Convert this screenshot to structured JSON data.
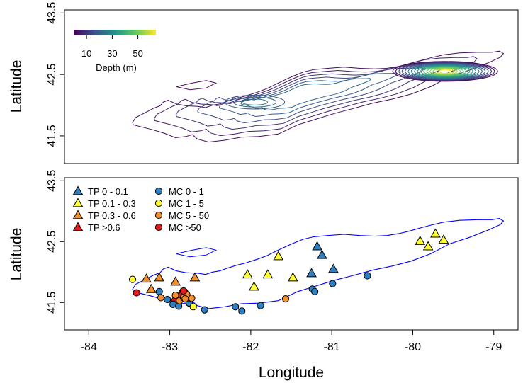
{
  "chart_data": [
    {
      "type": "contour",
      "panel": "top",
      "ylabel": "Latitude",
      "xlim": [
        -84.3,
        -78.7
      ],
      "ylim": [
        41.05,
        43.55
      ],
      "yticks": [
        "41.5",
        "42.5",
        "43.5"
      ],
      "colorbar": {
        "label": "Depth (m)",
        "ticks": [
          "10",
          "30",
          "50"
        ],
        "range": [
          0,
          64
        ],
        "palette": "viridis",
        "colors": [
          "#440154",
          "#3b528b",
          "#21918c",
          "#5ec962",
          "#fde725"
        ]
      },
      "contour_levels_m": [
        2,
        6,
        10,
        14,
        18,
        22,
        26,
        30,
        34,
        38,
        42,
        46,
        50,
        54,
        58,
        62
      ]
    },
    {
      "type": "scatter",
      "panel": "bottom",
      "xlabel": "Longitude",
      "ylabel": "Latitude",
      "xlim": [
        -84.3,
        -78.7
      ],
      "ylim": [
        41.05,
        43.55
      ],
      "xticks": [
        "-84",
        "-83",
        "-82",
        "-81",
        "-80",
        "-79"
      ],
      "yticks": [
        "41.5",
        "42.5",
        "43.5"
      ],
      "shoreline_color": "#0000ff",
      "legend_position": "top-left",
      "series": [
        {
          "name": "TP 0 - 0.1",
          "marker": "triangle",
          "color": "#2f7fc1",
          "x": [
            -81.18,
            -81.12,
            -81.25,
            -80.98
          ],
          "y": [
            42.42,
            42.28,
            41.98,
            42.05
          ]
        },
        {
          "name": "TP 0.1 - 0.3",
          "marker": "triangle",
          "color": "#ffff33",
          "x": [
            -81.66,
            -81.79,
            -82.04,
            -81.96,
            -81.48,
            -79.72,
            -79.91,
            -79.62,
            -79.81
          ],
          "y": [
            42.26,
            41.96,
            41.96,
            41.76,
            41.91,
            42.63,
            42.51,
            42.53,
            42.42
          ]
        },
        {
          "name": "TP 0.3 - 0.6",
          "marker": "triangle",
          "color": "#f28e2b",
          "x": [
            -83.29,
            -83.13,
            -82.93,
            -82.69,
            -83.23,
            -82.86
          ],
          "y": [
            41.89,
            41.91,
            41.84,
            41.91,
            41.72,
            41.66
          ]
        },
        {
          "name": "TP >0.6",
          "marker": "triangle",
          "color": "#e41a1c",
          "x": [
            -82.93,
            -82.86,
            -82.79
          ],
          "y": [
            41.58,
            41.63,
            41.64
          ]
        },
        {
          "name": "MC 0 - 1",
          "marker": "circle",
          "color": "#2f7fc1",
          "x": [
            -83.13,
            -83.03,
            -82.96,
            -82.89,
            -82.76,
            -82.57,
            -82.19,
            -82.11,
            -81.88,
            -81.24,
            -81.21,
            -80.99,
            -80.56
          ],
          "y": [
            41.68,
            41.55,
            41.47,
            41.44,
            41.49,
            41.38,
            41.43,
            41.36,
            41.45,
            41.72,
            41.68,
            41.81,
            41.94
          ]
        },
        {
          "name": "MC 1 - 5",
          "marker": "circle",
          "color": "#ffff33",
          "x": [
            -83.46,
            -82.71,
            -82.75
          ],
          "y": [
            41.88,
            41.43,
            41.57
          ]
        },
        {
          "name": "MC 5 - 50",
          "marker": "circle",
          "color": "#f28e2b",
          "x": [
            -83.11,
            -82.88,
            -82.93,
            -82.83,
            -82.79,
            -82.81,
            -82.73,
            -81.57
          ],
          "y": [
            41.58,
            41.53,
            41.62,
            41.58,
            41.63,
            41.56,
            41.57,
            41.56
          ]
        },
        {
          "name": "MC >50",
          "marker": "circle",
          "color": "#e41a1c",
          "x": [
            -83.41,
            -82.83
          ],
          "y": [
            41.66,
            41.69
          ]
        }
      ]
    }
  ]
}
